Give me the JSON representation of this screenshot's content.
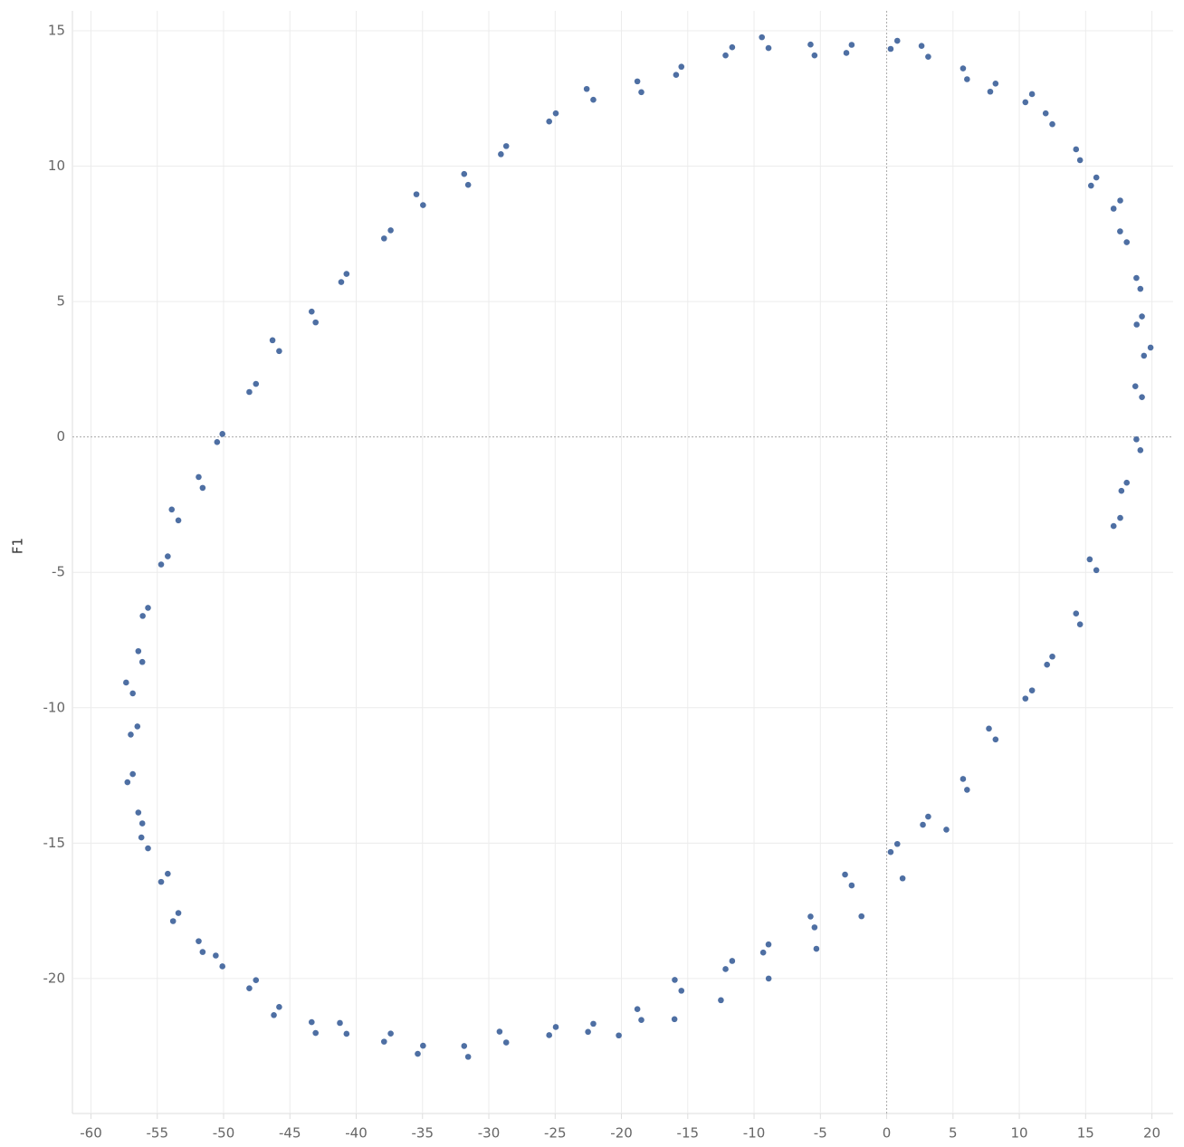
{
  "chart_data": {
    "type": "scatter",
    "y_label": "F1",
    "color": "#4e6fa3",
    "grid": true,
    "zero_lines": true,
    "xlim": [
      -61.4,
      21.6
    ],
    "ylim": [
      -24.9,
      15.6
    ],
    "xticks": [
      -60,
      -55,
      -50,
      -45,
      -40,
      -35,
      -30,
      -25,
      -20,
      -15,
      -10,
      -5,
      0,
      5,
      10,
      15,
      20
    ],
    "yticks": [
      -20,
      -15,
      -10,
      -5,
      0,
      5,
      10,
      15
    ],
    "x": [
      19.4,
      19.25,
      18.83,
      18.1,
      17.11,
      15.81,
      14.28,
      12.49,
      10.46,
      8.21,
      5.76,
      3.13,
      0.3,
      -2.64,
      -5.74,
      -8.91,
      -12.15,
      -15.48,
      -18.8,
      -22.12,
      -25.45,
      -28.69,
      -31.86,
      -34.96,
      -37.9,
      -40.73,
      -43.36,
      -45.81,
      -48.06,
      -50.09,
      -51.88,
      -53.41,
      -54.71,
      -55.7,
      -56.43,
      -56.85,
      -57.0,
      -56.85,
      -56.43,
      -55.7,
      -54.71,
      -53.41,
      -51.88,
      -50.09,
      -48.06,
      -45.81,
      -43.36,
      -40.73,
      -37.9,
      -34.96,
      -31.86,
      -28.69,
      -25.45,
      -22.12,
      -18.8,
      -15.48,
      -12.15,
      -8.91,
      -5.74,
      -2.64,
      0.3,
      3.13,
      5.76,
      8.21,
      10.46,
      12.49,
      14.28,
      15.81,
      17.11,
      18.1,
      18.83,
      19.25,
      19.9,
      18.85,
      19.13,
      17.6,
      17.61,
      15.41,
      14.58,
      11.99,
      10.96,
      7.81,
      6.06,
      2.63,
      0.8,
      -3.04,
      -5.44,
      -9.41,
      -11.65,
      -15.88,
      -18.5,
      -22.62,
      -24.95,
      -29.09,
      -31.56,
      -35.46,
      -37.4,
      -41.13,
      -43.06,
      -46.31,
      -47.56,
      -50.49,
      -51.58,
      -53.91,
      -54.21,
      -56.1,
      -56.13,
      -57.35,
      -56.5,
      -57.25,
      -56.13,
      -56.2,
      -54.21,
      -53.81,
      -51.58,
      -50.59,
      -47.56,
      -46.21,
      -43.06,
      -41.23,
      -37.4,
      -35.36,
      -31.56,
      -29.19,
      -24.95,
      -22.52,
      -18.5,
      -15.98,
      -11.65,
      -9.31,
      -5.44,
      -3.14,
      0.8,
      2.73,
      6.06,
      7.71,
      10.96,
      12.09,
      14.58,
      15.31,
      17.61,
      17.7,
      19.13,
      18.75,
      4.5,
      1.2,
      -1.9,
      -5.3,
      -8.9,
      -12.5,
      -16,
      -20.2
    ],
    "y": [
      3.0,
      4.45,
      5.87,
      7.19,
      8.43,
      9.58,
      10.62,
      11.55,
      12.36,
      13.05,
      13.61,
      14.04,
      14.33,
      14.48,
      14.49,
      14.36,
      14.09,
      13.67,
      13.13,
      12.45,
      11.65,
      10.74,
      9.71,
      8.56,
      7.33,
      6.02,
      4.63,
      3.17,
      1.66,
      0.11,
      -1.48,
      -3.08,
      -4.71,
      -6.31,
      -7.91,
      -9.47,
      -10.99,
      -12.45,
      -13.87,
      -15.19,
      -16.43,
      -17.58,
      -18.62,
      -19.55,
      -20.36,
      -21.05,
      -21.61,
      -22.04,
      -22.33,
      -22.48,
      -22.49,
      -22.36,
      -22.09,
      -21.67,
      -21.13,
      -20.45,
      -19.65,
      -18.74,
      -17.71,
      -16.56,
      -15.33,
      -14.02,
      -12.63,
      -11.17,
      -9.66,
      -8.11,
      -6.52,
      -4.92,
      -3.29,
      -1.69,
      -0.09,
      1.47,
      3.3,
      4.15,
      5.47,
      7.59,
      8.73,
      9.28,
      10.22,
      11.95,
      12.66,
      12.75,
      13.21,
      14.44,
      14.63,
      14.18,
      14.09,
      14.76,
      14.39,
      13.37,
      12.73,
      12.85,
      11.95,
      10.44,
      9.31,
      8.96,
      7.63,
      5.72,
      4.23,
      3.57,
      1.96,
      -0.19,
      -1.88,
      -2.68,
      -4.41,
      -6.61,
      -8.31,
      -9.07,
      -10.69,
      -12.75,
      -14.27,
      -14.79,
      -16.13,
      -17.88,
      -19.02,
      -19.15,
      -20.06,
      -21.35,
      -22.01,
      -21.64,
      -22.03,
      -22.78,
      -22.89,
      -21.96,
      -21.79,
      -21.97,
      -21.53,
      -20.05,
      -19.35,
      -19.04,
      -18.11,
      -16.16,
      -15.03,
      -14.32,
      -13.03,
      -10.77,
      -9.36,
      -8.41,
      -6.92,
      -4.52,
      -2.99,
      -1.99,
      -0.49,
      1.87,
      -14.5,
      -16.3,
      -17.7,
      -18.9,
      -20,
      -20.8,
      -21.5,
      -22.1
    ]
  }
}
